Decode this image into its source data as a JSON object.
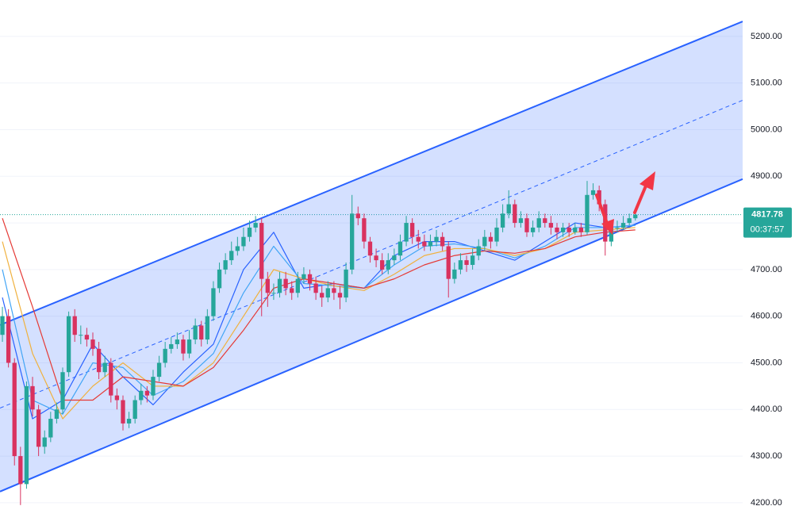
{
  "chart_data": {
    "type": "candlestick",
    "up_color": "#26a69a",
    "down_color": "#d9325f",
    "grid": true,
    "xlim": [
      -0.4,
      122.8
    ],
    "ylim": [
      4193,
      5278
    ],
    "yticks": [
      {
        "value": 4200,
        "label": "4200.00"
      },
      {
        "value": 4300,
        "label": "4300.00"
      },
      {
        "value": 4400,
        "label": "4400.00"
      },
      {
        "value": 4500,
        "label": "4500.00"
      },
      {
        "value": 4600,
        "label": "4600.00"
      },
      {
        "value": 4700,
        "label": "4700.00"
      },
      {
        "value": 4800,
        "label": "4800.00"
      },
      {
        "value": 4900,
        "label": "4900.00"
      },
      {
        "value": 5000,
        "label": "5000.00"
      },
      {
        "value": 5100,
        "label": "5100.00"
      },
      {
        "value": 5200,
        "label": "5200.00"
      }
    ],
    "open": [
      4560,
      4600,
      4500,
      4300,
      4240,
      4450,
      4400,
      4320,
      4340,
      4380,
      4400,
      4480,
      4600,
      4560,
      4560,
      4550,
      4530,
      4480,
      4500,
      4430,
      4420,
      4370,
      4380,
      4420,
      4440,
      4430,
      4470,
      4500,
      4530,
      4540,
      4550,
      4520,
      4550,
      4580,
      4550,
      4600,
      4660,
      4700,
      4720,
      4740,
      4750,
      4770,
      4790,
      4800,
      4680,
      4650,
      4650,
      4680,
      4660,
      4650,
      4680,
      4690,
      4670,
      4650,
      4640,
      4660,
      4650,
      4640,
      4700,
      4820,
      4810,
      4760,
      4730,
      4720,
      4700,
      4720,
      4730,
      4760,
      4800,
      4770,
      4760,
      4750,
      4760,
      4770,
      4750,
      4680,
      4700,
      4720,
      4710,
      4730,
      4750,
      4770,
      4760,
      4790,
      4820,
      4840,
      4800,
      4810,
      4780,
      4790,
      4810,
      4800,
      4790,
      4780,
      4790,
      4780,
      4790,
      4780,
      4860,
      4870,
      4840,
      4760,
      4790,
      4790,
      4800,
      4810
    ],
    "high": [
      4620,
      4615,
      4510,
      4320,
      4460,
      4470,
      4410,
      4355,
      4395,
      4415,
      4490,
      4610,
      4615,
      4580,
      4575,
      4565,
      4545,
      4515,
      4510,
      4445,
      4430,
      4395,
      4430,
      4455,
      4450,
      4485,
      4515,
      4545,
      4555,
      4565,
      4560,
      4570,
      4595,
      4590,
      4615,
      4675,
      4715,
      4735,
      4760,
      4770,
      4790,
      4805,
      4815,
      4810,
      4695,
      4670,
      4695,
      4695,
      4675,
      4695,
      4705,
      4700,
      4685,
      4665,
      4675,
      4675,
      4665,
      4715,
      4860,
      4835,
      4820,
      4770,
      4745,
      4735,
      4735,
      4745,
      4775,
      4815,
      4810,
      4785,
      4775,
      4775,
      4785,
      4780,
      4760,
      4715,
      4735,
      4730,
      4745,
      4765,
      4785,
      4780,
      4810,
      4840,
      4870,
      4850,
      4825,
      4820,
      4805,
      4825,
      4820,
      4815,
      4800,
      4800,
      4800,
      4800,
      4800,
      4890,
      4885,
      4880,
      4850,
      4800,
      4805,
      4815,
      4820,
      4825
    ],
    "low": [
      4545,
      4490,
      4280,
      4195,
      4230,
      4385,
      4300,
      4305,
      4330,
      4370,
      4390,
      4470,
      4545,
      4540,
      4535,
      4515,
      4465,
      4470,
      4415,
      4400,
      4355,
      4360,
      4370,
      4410,
      4415,
      4420,
      4460,
      4490,
      4520,
      4530,
      4505,
      4510,
      4540,
      4535,
      4540,
      4590,
      4650,
      4690,
      4710,
      4730,
      4740,
      4760,
      4780,
      4600,
      4620,
      4635,
      4640,
      4645,
      4635,
      4640,
      4670,
      4655,
      4635,
      4620,
      4630,
      4635,
      4615,
      4630,
      4690,
      4795,
      4745,
      4715,
      4705,
      4690,
      4690,
      4710,
      4720,
      4750,
      4755,
      4745,
      4740,
      4740,
      4750,
      4740,
      4640,
      4670,
      4690,
      4695,
      4700,
      4720,
      4740,
      4745,
      4750,
      4780,
      4810,
      4790,
      4790,
      4770,
      4770,
      4780,
      4790,
      4775,
      4765,
      4770,
      4770,
      4775,
      4770,
      4775,
      4850,
      4825,
      4730,
      4750,
      4780,
      4785,
      4795,
      4805
    ],
    "close": [
      4600,
      4500,
      4300,
      4240,
      4450,
      4400,
      4320,
      4340,
      4380,
      4400,
      4480,
      4600,
      4560,
      4560,
      4550,
      4530,
      4480,
      4500,
      4430,
      4420,
      4370,
      4380,
      4420,
      4440,
      4430,
      4470,
      4500,
      4530,
      4540,
      4550,
      4520,
      4550,
      4580,
      4550,
      4600,
      4660,
      4700,
      4720,
      4740,
      4750,
      4770,
      4790,
      4800,
      4680,
      4650,
      4650,
      4680,
      4660,
      4650,
      4680,
      4690,
      4670,
      4650,
      4640,
      4660,
      4650,
      4640,
      4700,
      4820,
      4810,
      4760,
      4730,
      4720,
      4700,
      4720,
      4730,
      4760,
      4800,
      4770,
      4760,
      4750,
      4760,
      4770,
      4750,
      4680,
      4700,
      4720,
      4710,
      4730,
      4750,
      4770,
      4760,
      4790,
      4820,
      4840,
      4800,
      4810,
      4780,
      4790,
      4810,
      4800,
      4790,
      4780,
      4790,
      4780,
      4790,
      4780,
      4860,
      4870,
      4840,
      4760,
      4790,
      4790,
      4800,
      4810,
      4817.78
    ],
    "moving_averages": [
      {
        "color": "#2962ff",
        "x": [
          0,
          5,
          10,
          15,
          20,
          25,
          30,
          35,
          40,
          45,
          50,
          55,
          60,
          65,
          70,
          75,
          80,
          85,
          90,
          95,
          100,
          105
        ],
        "values": [
          4640,
          4380,
          4420,
          4540,
          4470,
          4410,
          4480,
          4540,
          4700,
          4780,
          4660,
          4670,
          4660,
          4730,
          4760,
          4760,
          4740,
          4720,
          4760,
          4800,
          4790,
          4795
        ]
      },
      {
        "color": "#42a5f5",
        "x": [
          0,
          5,
          10,
          15,
          20,
          25,
          30,
          35,
          40,
          45,
          50,
          55,
          60,
          65,
          70,
          75,
          80,
          85,
          90,
          95,
          100,
          105
        ],
        "values": [
          4700,
          4420,
          4390,
          4500,
          4490,
          4430,
          4460,
          4520,
          4650,
          4750,
          4670,
          4665,
          4660,
          4710,
          4750,
          4755,
          4745,
          4725,
          4750,
          4790,
          4790,
          4795
        ]
      },
      {
        "color": "#f0b13e",
        "x": [
          0,
          5,
          10,
          15,
          20,
          25,
          30,
          35,
          40,
          45,
          50,
          55,
          60,
          65,
          70,
          75,
          80,
          85,
          90,
          95,
          100,
          105
        ],
        "values": [
          4760,
          4520,
          4380,
          4450,
          4500,
          4450,
          4450,
          4500,
          4600,
          4700,
          4680,
          4665,
          4655,
          4690,
          4730,
          4745,
          4745,
          4730,
          4745,
          4780,
          4785,
          4790
        ]
      },
      {
        "color": "#e53935",
        "x": [
          0,
          5,
          10,
          15,
          20,
          25,
          30,
          35,
          40,
          45,
          50,
          55,
          60,
          65,
          70,
          75,
          80,
          85,
          90,
          95,
          100,
          105
        ],
        "values": [
          4810,
          4620,
          4420,
          4420,
          4470,
          4460,
          4450,
          4490,
          4570,
          4660,
          4680,
          4670,
          4660,
          4680,
          4710,
          4730,
          4740,
          4735,
          4745,
          4770,
          4780,
          4785
        ]
      }
    ],
    "channel": {
      "color": "#2962ff",
      "x": [
        -0.4,
        122.8
      ],
      "upper": [
        4581,
        5232
      ],
      "middle": [
        4403,
        5063
      ],
      "lower": [
        4224,
        4894
      ]
    },
    "countdown": "00:37:57"
  }
}
